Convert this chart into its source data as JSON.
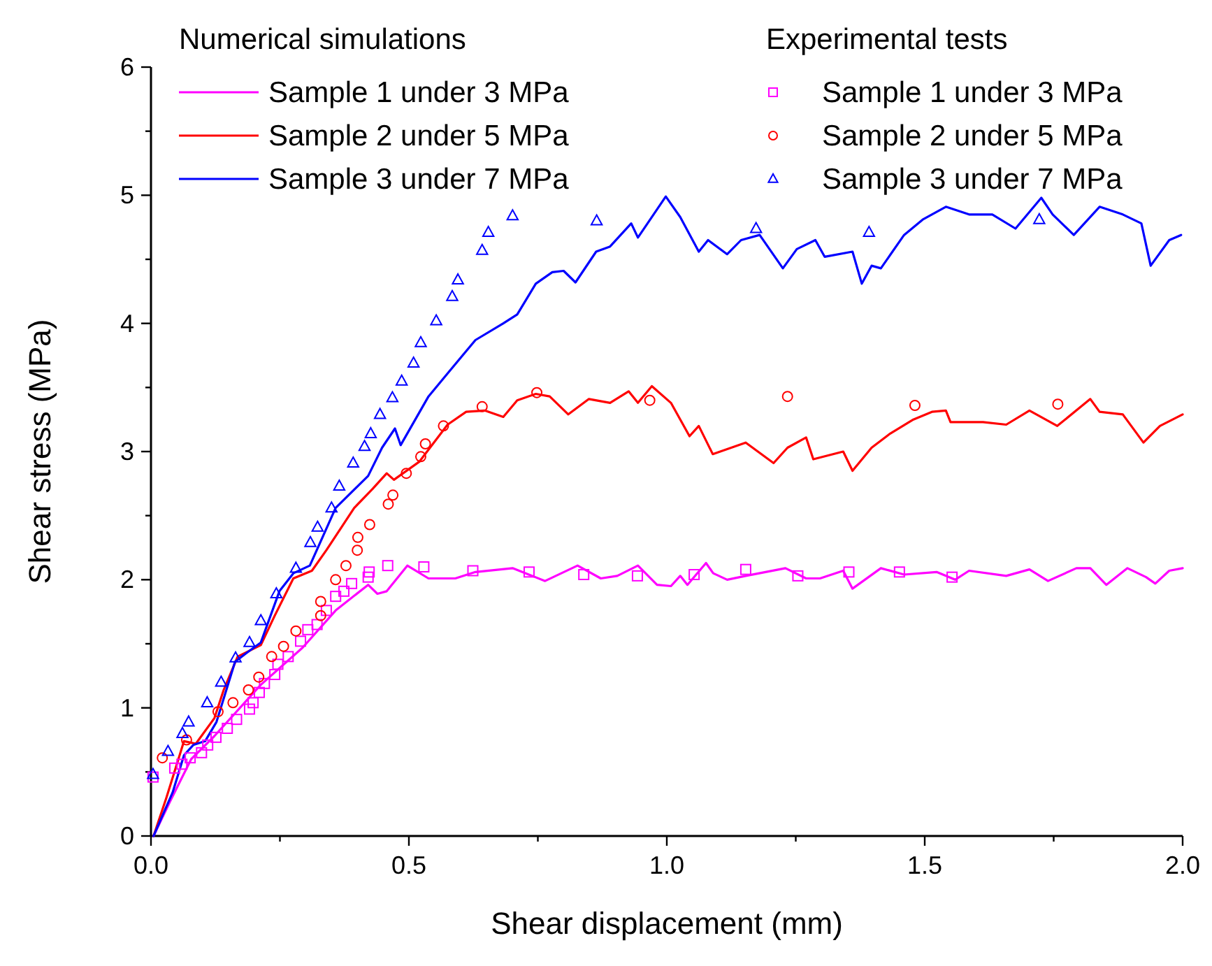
{
  "chart_data": {
    "type": "line",
    "xlabel": "Shear displacement (mm)",
    "ylabel": "Shear stress (MPa)",
    "annotations": [
      "Numerical simulations",
      "Experimental tests"
    ],
    "xlim": [
      0,
      2
    ],
    "ylim": [
      0,
      6
    ],
    "xticks": [
      {
        "value": 0,
        "label": "0.0"
      },
      {
        "value": 0.25,
        "label": null
      },
      {
        "value": 0.5,
        "label": "0.5"
      },
      {
        "value": 0.75,
        "label": null
      },
      {
        "value": 1,
        "label": "1.0"
      },
      {
        "value": 1.25,
        "label": null
      },
      {
        "value": 1.5,
        "label": "1.5"
      },
      {
        "value": 1.75,
        "label": null
      },
      {
        "value": 2,
        "label": "2.0"
      }
    ],
    "yticks": [
      0,
      {
        "value": 0.5,
        "label": null
      },
      1,
      {
        "value": 1.5,
        "label": null
      },
      2,
      {
        "value": 2.5,
        "label": null
      },
      3,
      {
        "value": 3.5,
        "label": null
      },
      4,
      {
        "value": 4.5,
        "label": null
      },
      5,
      {
        "value": 5.5,
        "label": null
      },
      6
    ],
    "grid": false,
    "legend": "top",
    "line_style": "solid",
    "series": [
      {
        "marker": "none",
        "name": "Sample 1 under 3 MPa",
        "color": "#ff00ff",
        "x": [
          0.005,
          0.037,
          0.078,
          0.123,
          0.213,
          0.294,
          0.358,
          0.421,
          0.439,
          0.457,
          0.497,
          0.538,
          0.59,
          0.629,
          0.701,
          0.764,
          0.827,
          0.872,
          0.904,
          0.944,
          0.981,
          1.008,
          1.026,
          1.04,
          1.076,
          1.09,
          1.117,
          1.153,
          1.23,
          1.27,
          1.297,
          1.342,
          1.36,
          1.415,
          1.46,
          1.523,
          1.559,
          1.586,
          1.658,
          1.703,
          1.739,
          1.794,
          1.821,
          1.852,
          1.893,
          1.929,
          1.947,
          1.974,
          2.0
        ],
        "values": [
          0,
          0.27,
          0.6,
          0.78,
          1.18,
          1.47,
          1.76,
          1.96,
          1.89,
          1.91,
          2.11,
          2.01,
          2.01,
          2.06,
          2.09,
          1.99,
          2.11,
          2.01,
          2.03,
          2.11,
          1.96,
          1.95,
          2.03,
          1.96,
          2.13,
          2.05,
          2.0,
          2.03,
          2.09,
          2.01,
          2.01,
          2.07,
          1.93,
          2.09,
          2.04,
          2.06,
          2.0,
          2.07,
          2.03,
          2.08,
          1.99,
          2.09,
          2.09,
          1.96,
          2.09,
          2.02,
          1.97,
          2.07,
          2.09
        ]
      },
      {
        "marker": "none",
        "name": "Sample 2 under 5 MPa",
        "color": "#ff0000",
        "x": [
          0.005,
          0.03,
          0.064,
          0.087,
          0.123,
          0.141,
          0.168,
          0.213,
          0.24,
          0.276,
          0.312,
          0.34,
          0.394,
          0.43,
          0.457,
          0.471,
          0.52,
          0.575,
          0.611,
          0.647,
          0.683,
          0.71,
          0.746,
          0.773,
          0.809,
          0.849,
          0.89,
          0.926,
          0.944,
          0.971,
          1.008,
          1.044,
          1.062,
          1.089,
          1.153,
          1.207,
          1.234,
          1.27,
          1.284,
          1.342,
          1.36,
          1.397,
          1.433,
          1.478,
          1.514,
          1.541,
          1.55,
          1.613,
          1.658,
          1.703,
          1.757,
          1.821,
          1.839,
          1.884,
          1.924,
          1.956,
          2.0
        ],
        "values": [
          0,
          0.3,
          0.74,
          0.72,
          0.92,
          1.14,
          1.4,
          1.49,
          1.72,
          2.01,
          2.07,
          2.23,
          2.56,
          2.71,
          2.83,
          2.78,
          2.92,
          3.21,
          3.31,
          3.32,
          3.27,
          3.4,
          3.45,
          3.43,
          3.29,
          3.41,
          3.38,
          3.47,
          3.38,
          3.51,
          3.38,
          3.12,
          3.2,
          2.98,
          3.07,
          2.91,
          3.03,
          3.11,
          2.94,
          3.0,
          2.85,
          3.03,
          3.14,
          3.25,
          3.31,
          3.32,
          3.23,
          3.23,
          3.21,
          3.32,
          3.2,
          3.41,
          3.31,
          3.29,
          3.07,
          3.2,
          3.29
        ]
      },
      {
        "marker": "none",
        "name": "Sample 3 under 7 MPa",
        "color": "#0000ff",
        "x": [
          0.005,
          0.042,
          0.064,
          0.082,
          0.105,
          0.127,
          0.163,
          0.186,
          0.213,
          0.249,
          0.276,
          0.308,
          0.358,
          0.421,
          0.448,
          0.473,
          0.484,
          0.538,
          0.575,
          0.629,
          0.683,
          0.71,
          0.746,
          0.778,
          0.8,
          0.823,
          0.863,
          0.89,
          0.931,
          0.944,
          0.998,
          1.026,
          1.062,
          1.08,
          1.117,
          1.144,
          1.18,
          1.225,
          1.252,
          1.288,
          1.306,
          1.36,
          1.378,
          1.397,
          1.415,
          1.46,
          1.496,
          1.541,
          1.586,
          1.631,
          1.676,
          1.726,
          1.748,
          1.789,
          1.839,
          1.884,
          1.92,
          1.938,
          1.974,
          1.997
        ],
        "values": [
          0,
          0.34,
          0.63,
          0.71,
          0.74,
          0.89,
          1.36,
          1.43,
          1.51,
          1.91,
          2.05,
          2.11,
          2.56,
          2.81,
          3.03,
          3.18,
          3.05,
          3.43,
          3.61,
          3.87,
          4.0,
          4.07,
          4.31,
          4.4,
          4.41,
          4.32,
          4.56,
          4.6,
          4.78,
          4.67,
          4.99,
          4.83,
          4.56,
          4.65,
          4.54,
          4.65,
          4.69,
          4.43,
          4.58,
          4.65,
          4.52,
          4.56,
          4.31,
          4.45,
          4.43,
          4.69,
          4.81,
          4.91,
          4.85,
          4.85,
          4.74,
          4.98,
          4.85,
          4.69,
          4.91,
          4.85,
          4.78,
          4.45,
          4.65,
          4.69
        ]
      },
      {
        "type": "scatter",
        "marker": "square",
        "name": "Sample 1 under 3 MPa",
        "color": "#ff00ff",
        "x": [
          0.004,
          0.046,
          0.06,
          0.076,
          0.098,
          0.11,
          0.126,
          0.148,
          0.166,
          0.191,
          0.198,
          0.21,
          0.22,
          0.24,
          0.246,
          0.266,
          0.29,
          0.304,
          0.322,
          0.34,
          0.358,
          0.374,
          0.389,
          0.421,
          0.423,
          0.459,
          0.529,
          0.624,
          0.733,
          0.839,
          0.943,
          1.053,
          1.153,
          1.254,
          1.353,
          1.451,
          1.553
        ],
        "values": [
          0.46,
          0.53,
          0.56,
          0.61,
          0.65,
          0.71,
          0.77,
          0.84,
          0.91,
          0.99,
          1.04,
          1.12,
          1.19,
          1.26,
          1.34,
          1.4,
          1.52,
          1.61,
          1.65,
          1.76,
          1.87,
          1.91,
          1.97,
          2.02,
          2.06,
          2.11,
          2.1,
          2.07,
          2.06,
          2.04,
          2.03,
          2.04,
          2.08,
          2.03,
          2.06,
          2.06,
          2.02
        ]
      },
      {
        "type": "scatter",
        "marker": "circle",
        "name": "Sample 2 under 5 MPa",
        "color": "#ff0000",
        "x": [
          0.022,
          0.069,
          0.13,
          0.159,
          0.189,
          0.209,
          0.234,
          0.257,
          0.281,
          0.329,
          0.329,
          0.358,
          0.378,
          0.4,
          0.401,
          0.424,
          0.46,
          0.469,
          0.495,
          0.523,
          0.532,
          0.567,
          0.642,
          0.748,
          0.967,
          1.234,
          1.481,
          1.758
        ],
        "values": [
          0.61,
          0.75,
          0.97,
          1.04,
          1.14,
          1.24,
          1.4,
          1.48,
          1.6,
          1.72,
          1.83,
          2.0,
          2.11,
          2.23,
          2.33,
          2.43,
          2.59,
          2.66,
          2.83,
          2.96,
          3.06,
          3.2,
          3.35,
          3.46,
          3.4,
          3.43,
          3.36,
          3.37
        ]
      },
      {
        "type": "scatter",
        "marker": "triangle",
        "name": "Sample 3 under 7 MPa",
        "color": "#0000ff",
        "x": [
          0.004,
          0.033,
          0.061,
          0.073,
          0.109,
          0.136,
          0.164,
          0.191,
          0.213,
          0.243,
          0.281,
          0.309,
          0.323,
          0.35,
          0.365,
          0.392,
          0.414,
          0.426,
          0.444,
          0.468,
          0.486,
          0.509,
          0.523,
          0.553,
          0.584,
          0.595,
          0.642,
          0.654,
          0.701,
          0.864,
          1.173,
          1.392,
          1.722
        ],
        "values": [
          0.48,
          0.66,
          0.8,
          0.89,
          1.04,
          1.2,
          1.39,
          1.51,
          1.68,
          1.89,
          2.09,
          2.29,
          2.41,
          2.56,
          2.73,
          2.91,
          3.04,
          3.14,
          3.29,
          3.42,
          3.55,
          3.69,
          3.85,
          4.02,
          4.21,
          4.34,
          4.57,
          4.71,
          4.84,
          4.8,
          4.74,
          4.71,
          4.81
        ]
      }
    ]
  }
}
